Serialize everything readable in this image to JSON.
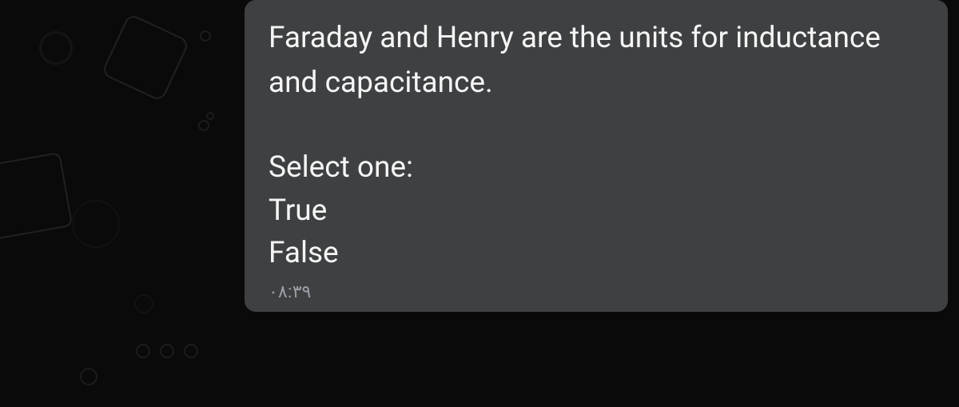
{
  "message": {
    "question": "Faraday and Henry are the units for inductance and capacitance.",
    "prompt": "Select one:",
    "options": {
      "true_label": "True",
      "false_label": "False"
    },
    "timestamp": "۰۸:۳۹"
  },
  "colors": {
    "bubble_bg": "#3e4042",
    "text": "#f5f5f5",
    "timestamp": "#9aa0a6",
    "page_bg": "#0a0a0a"
  }
}
